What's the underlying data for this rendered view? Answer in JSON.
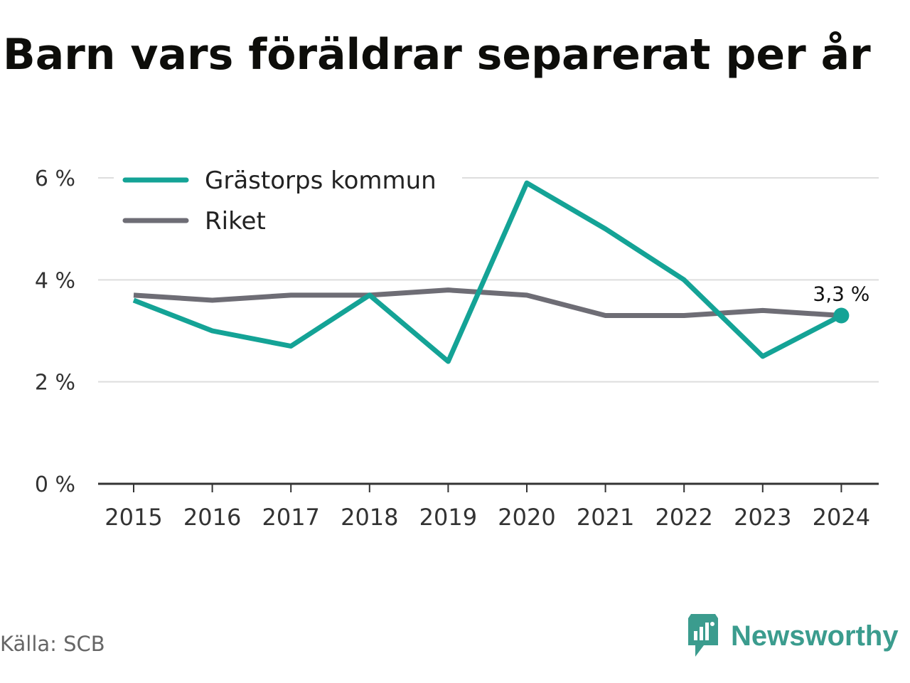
{
  "title": "Barn vars föräldrar separerat per år",
  "source": "Källa: SCB",
  "brand": {
    "name": "Newsworthy",
    "icon": "newsworthy-logo-icon",
    "color": "#3b9c8e"
  },
  "chart_data": {
    "type": "line",
    "x": [
      "2015",
      "2016",
      "2017",
      "2018",
      "2019",
      "2020",
      "2021",
      "2022",
      "2023",
      "2024"
    ],
    "series": [
      {
        "name": "Grästorps kommun",
        "color": "#14a396",
        "values": [
          3.6,
          3.0,
          2.7,
          3.7,
          2.4,
          5.9,
          5.0,
          4.0,
          2.5,
          3.3
        ]
      },
      {
        "name": "Riket",
        "color": "#6e6d75",
        "values": [
          3.7,
          3.6,
          3.7,
          3.7,
          3.8,
          3.7,
          3.3,
          3.3,
          3.4,
          3.3
        ]
      }
    ],
    "yticks": [
      "0 %",
      "2 %",
      "4 %",
      "6 %"
    ],
    "ytick_values": [
      0,
      2,
      4,
      6
    ],
    "ylim": [
      0,
      6
    ],
    "grid": true,
    "legend_position": "top-left",
    "annotation": {
      "series": "Grästorps kommun",
      "x": "2024",
      "value": 3.3,
      "label": "3,3 %"
    }
  }
}
